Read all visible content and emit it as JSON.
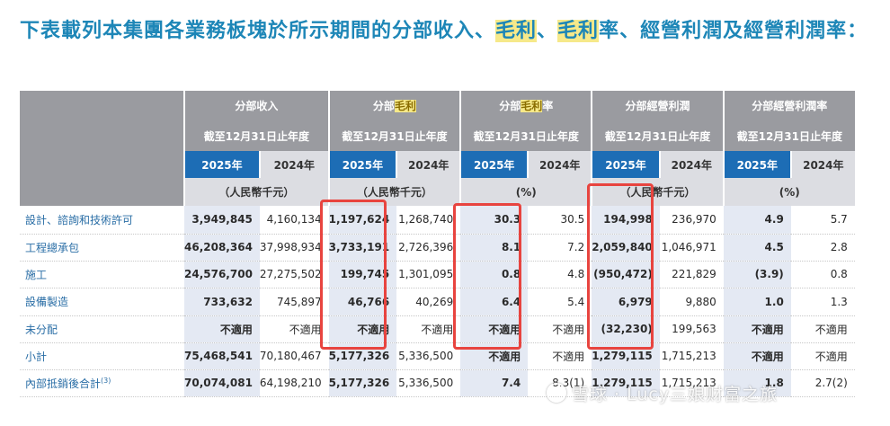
{
  "heading": {
    "part1": "下表載列本集團各業務板塊於所示期間的分部收入、",
    "hl1": "毛利",
    "part2": "、",
    "hl2": "毛利",
    "part3": "率、經營利潤及經營利潤率："
  },
  "table": {
    "groups": [
      {
        "pre": "分部收入",
        "hl": "",
        "post": ""
      },
      {
        "pre": "分部",
        "hl": "毛利",
        "post": ""
      },
      {
        "pre": "分部",
        "hl": "毛利",
        "post": "率"
      },
      {
        "pre": "分部經營利潤",
        "hl": "",
        "post": ""
      },
      {
        "pre": "分部經營利潤率",
        "hl": "",
        "post": ""
      }
    ],
    "period": "截至12月31日止年度",
    "years": [
      "2025年",
      "2024年"
    ],
    "units": [
      "（人民幣千元）",
      "（人民幣千元）",
      "(%)",
      "（人民幣千元）",
      "(%)"
    ],
    "rows": [
      {
        "label": "設計、諮詢和技術許可",
        "sup": "",
        "v": [
          "3,949,845",
          "4,160,134",
          "1,197,624",
          "1,268,740",
          "30.3",
          "30.5",
          "194,998",
          "236,970",
          "4.9",
          "5.7"
        ]
      },
      {
        "label": "工程總承包",
        "sup": "",
        "v": [
          "46,208,364",
          "37,998,934",
          "3,733,191",
          "2,726,396",
          "8.1",
          "7.2",
          "2,059,840",
          "1,046,971",
          "4.5",
          "2.8"
        ]
      },
      {
        "label": "施工",
        "sup": "",
        "v": [
          "24,576,700",
          "27,275,502",
          "199,745",
          "1,301,095",
          "0.8",
          "4.8",
          "(950,472)",
          "221,829",
          "(3.9)",
          "0.8"
        ]
      },
      {
        "label": "設備製造",
        "sup": "",
        "v": [
          "733,632",
          "745,897",
          "46,766",
          "40,269",
          "6.4",
          "5.4",
          "6,979",
          "9,880",
          "1.0",
          "1.3"
        ]
      },
      {
        "label": "未分配",
        "sup": "",
        "v": [
          "不適用",
          "不適用",
          "不適用",
          "不適用",
          "不適用",
          "不適用",
          "(32,230)",
          "199,563",
          "不適用",
          "不適用"
        ]
      },
      {
        "label": "小計",
        "sup": "",
        "v": [
          "75,468,541",
          "70,180,467",
          "5,177,326",
          "5,336,500",
          "不適用",
          "不適用",
          "1,279,115",
          "1,715,213",
          "不適用",
          "不適用"
        ]
      },
      {
        "label": "內部抵銷後合計",
        "sup": "(3)",
        "v": [
          "70,074,081",
          "64,198,210",
          "5,177,326",
          "5,336,500",
          "7.4",
          "8.3(1)",
          "1,279,115",
          "1,715,213",
          "1.8",
          "2.7(2)"
        ]
      }
    ]
  },
  "watermark": "雪球 · Lucy三娘财富之旅",
  "colors": {
    "accent": "#1d86b7",
    "header_gray": "#9a9ba0",
    "year_blue": "#1d6db5",
    "highlight": "#f6e98a",
    "annotation_red": "#e8443f"
  }
}
